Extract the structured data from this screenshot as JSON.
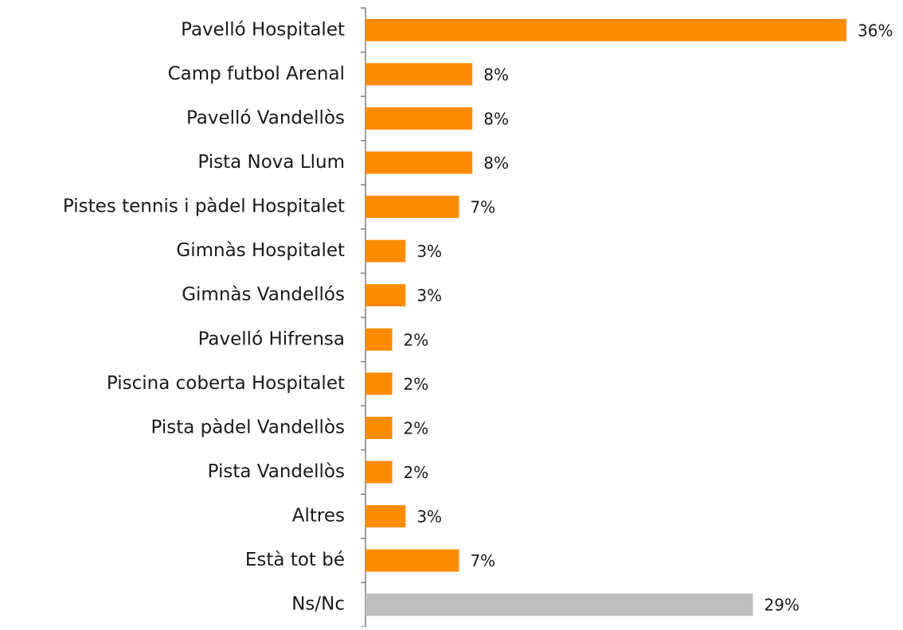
{
  "chart_data": {
    "type": "bar",
    "orientation": "horizontal",
    "categories": [
      "Pavelló Hospitalet",
      "Camp futbol Arenal",
      "Pavelló Vandellòs",
      "Pista Nova Llum",
      "Pistes tennis i pàdel Hospitalet",
      "Gimnàs Hospitalet",
      "Gimnàs Vandellós",
      "Pavelló Hifrensa",
      "Piscina coberta Hospitalet",
      "Pista pàdel Vandellòs",
      "Pista Vandellòs",
      "Altres",
      "Està tot bé",
      "Ns/Nc"
    ],
    "values": [
      36,
      8,
      8,
      8,
      7,
      3,
      3,
      2,
      2,
      2,
      2,
      3,
      7,
      29
    ],
    "value_labels": [
      "36%",
      "8%",
      "8%",
      "8%",
      "7%",
      "3%",
      "3%",
      "2%",
      "2%",
      "2%",
      "2%",
      "3%",
      "7%",
      "29%"
    ],
    "colors": [
      "#ff8c00",
      "#ff8c00",
      "#ff8c00",
      "#ff8c00",
      "#ff8c00",
      "#ff8c00",
      "#ff8c00",
      "#ff8c00",
      "#ff8c00",
      "#ff8c00",
      "#ff8c00",
      "#ff8c00",
      "#ff8c00",
      "#bfbfbf"
    ]
  }
}
